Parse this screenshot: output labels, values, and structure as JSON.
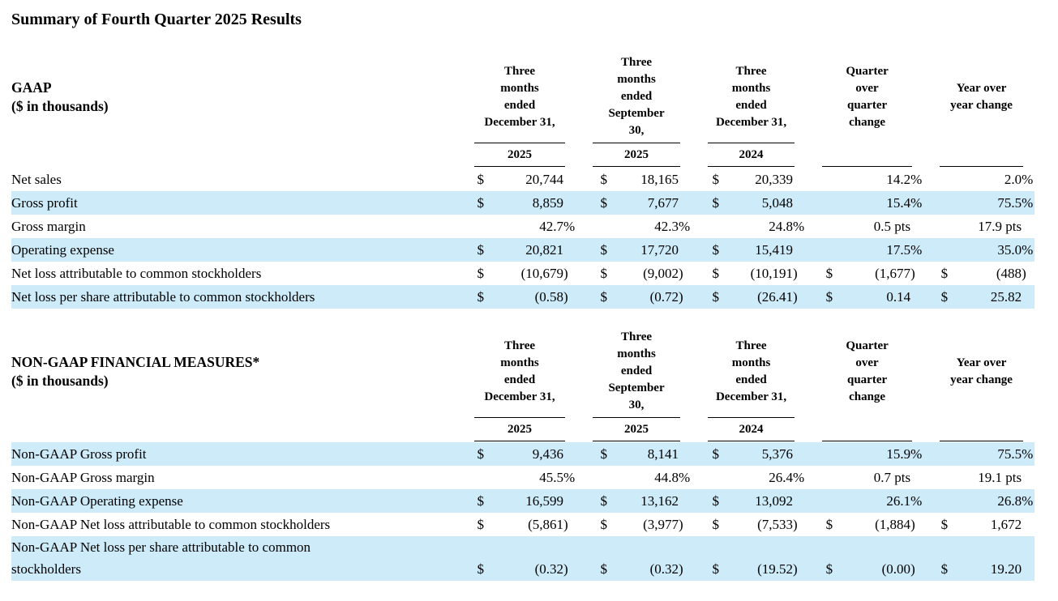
{
  "title": "Summary of Fourth Quarter 2025 Results",
  "colors": {
    "row_highlight": "#ceebf9",
    "text": "#000000",
    "rule_line": "#000000"
  },
  "columns": [
    {
      "lines": [
        "Three",
        "months",
        "ended",
        "December 31,"
      ],
      "year": "2025",
      "underline_top": true
    },
    {
      "lines": [
        "Three",
        "months",
        "ended",
        "September",
        "30,"
      ],
      "year": "2025",
      "underline_top": true
    },
    {
      "lines": [
        "Three",
        "months",
        "ended",
        "December 31,"
      ],
      "year": "2024",
      "underline_top": true
    },
    {
      "lines": [
        "Quarter",
        "over",
        "quarter",
        "change"
      ],
      "year": "",
      "underline_top": false
    },
    {
      "lines": [
        "Year over",
        "year change"
      ],
      "year": "",
      "underline_top": false
    }
  ],
  "sections": [
    {
      "heading": "GAAP",
      "subheading": "($ in thousands)",
      "rows": [
        {
          "label": "Net sales",
          "shaded": false,
          "cells": [
            "$ 20,744",
            "$ 18,165",
            "$ 20,339",
            "14.2%",
            "2.0%"
          ]
        },
        {
          "label": "Gross profit",
          "shaded": true,
          "cells": [
            "$ 8,859",
            "$ 7,677",
            "$ 5,048",
            "15.4%",
            "75.5%"
          ]
        },
        {
          "label": "Gross margin",
          "shaded": false,
          "cells": [
            "42.7%",
            "42.3%",
            "24.8%",
            "0.5 pts",
            "17.9 pts"
          ]
        },
        {
          "label": "Operating expense",
          "shaded": true,
          "cells": [
            "$ 20,821",
            "$ 17,720",
            "$ 15,419",
            "17.5%",
            "35.0%"
          ]
        },
        {
          "label": "Net loss attributable to common stockholders",
          "shaded": false,
          "cells": [
            "$ (10,679)",
            "$ (9,002)",
            "$ (10,191)",
            "$ (1,677)",
            "$ (488)"
          ]
        },
        {
          "label": "Net loss per share attributable to common stockholders",
          "shaded": true,
          "cells": [
            "$ (0.58)",
            "$ (0.72)",
            "$ (26.41)",
            "$ 0.14",
            "$ 25.82"
          ]
        }
      ]
    },
    {
      "heading": "NON-GAAP FINANCIAL MEASURES*",
      "subheading": "($ in thousands)",
      "rows": [
        {
          "label": "Non-GAAP Gross profit",
          "shaded": true,
          "cells": [
            "$ 9,436",
            "$ 8,141",
            "$ 5,376",
            "15.9%",
            "75.5%"
          ]
        },
        {
          "label": "Non-GAAP Gross margin",
          "shaded": false,
          "cells": [
            "45.5%",
            "44.8%",
            "26.4%",
            "0.7 pts",
            "19.1 pts"
          ]
        },
        {
          "label": "Non-GAAP Operating expense",
          "shaded": true,
          "cells": [
            "$ 16,599",
            "$ 13,162",
            "$ 13,092",
            "26.1%",
            "26.8%"
          ]
        },
        {
          "label": "Non-GAAP Net loss attributable to common stockholders",
          "shaded": false,
          "cells": [
            "$ (5,861)",
            "$ (3,977)",
            "$ (7,533)",
            "$ (1,884)",
            "$ 1,672"
          ]
        },
        {
          "label": "Non-GAAP Net loss per share attributable to common\nstockholders",
          "shaded": true,
          "cells": [
            "$ (0.32)",
            "$ (0.32)",
            "$ (19.52)",
            "$ (0.00)",
            "$ 19.20"
          ]
        }
      ]
    }
  ]
}
